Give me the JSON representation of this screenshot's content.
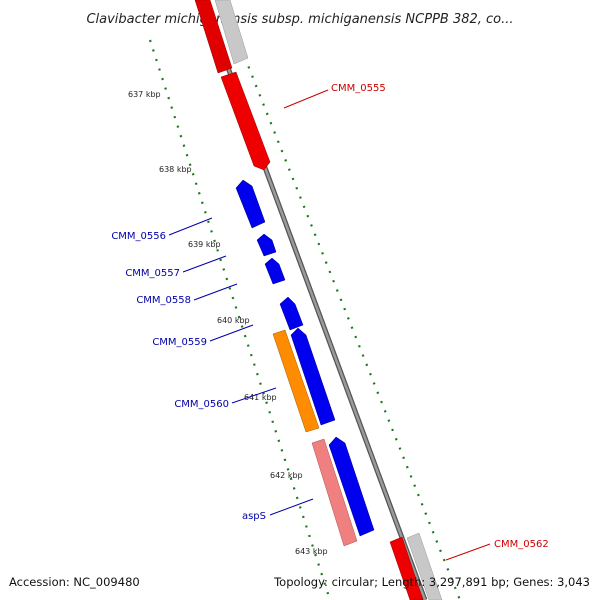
{
  "title": "Clavibacter michiganensis subsp. michiganensis NCPPB 382, co...",
  "footer": {
    "accession": "Accession: NC_009480",
    "summary": "Topology: circular; Length: 3,297,891 bp; Genes: 3,043"
  },
  "colors": {
    "forward_gene": "#ff0000",
    "reverse_gene": "#0000ee",
    "orange_gene": "#ff8c00",
    "pink_gene": "#f08080",
    "other_gene": "#c8c8c8",
    "backbone": "#888888",
    "ticks": "#1a7a1a"
  },
  "ticks": [
    {
      "label": "637 kbp"
    },
    {
      "label": "638 kbp"
    },
    {
      "label": "639 kbp"
    },
    {
      "label": "640 kbp"
    },
    {
      "label": "641 kbp"
    },
    {
      "label": "642 kbp"
    },
    {
      "label": "643 kbp"
    }
  ],
  "gene_labels": [
    {
      "text": "CMM_0555",
      "color": "#cc0000"
    },
    {
      "text": "CMM_0556",
      "color": "#0000aa"
    },
    {
      "text": "CMM_0557",
      "color": "#0000aa"
    },
    {
      "text": "CMM_0558",
      "color": "#0000aa"
    },
    {
      "text": "CMM_0559",
      "color": "#0000aa"
    },
    {
      "text": "CMM_0560",
      "color": "#0000aa"
    },
    {
      "text": "aspS",
      "color": "#0000aa"
    },
    {
      "text": "CMM_0562",
      "color": "#cc0000"
    }
  ]
}
